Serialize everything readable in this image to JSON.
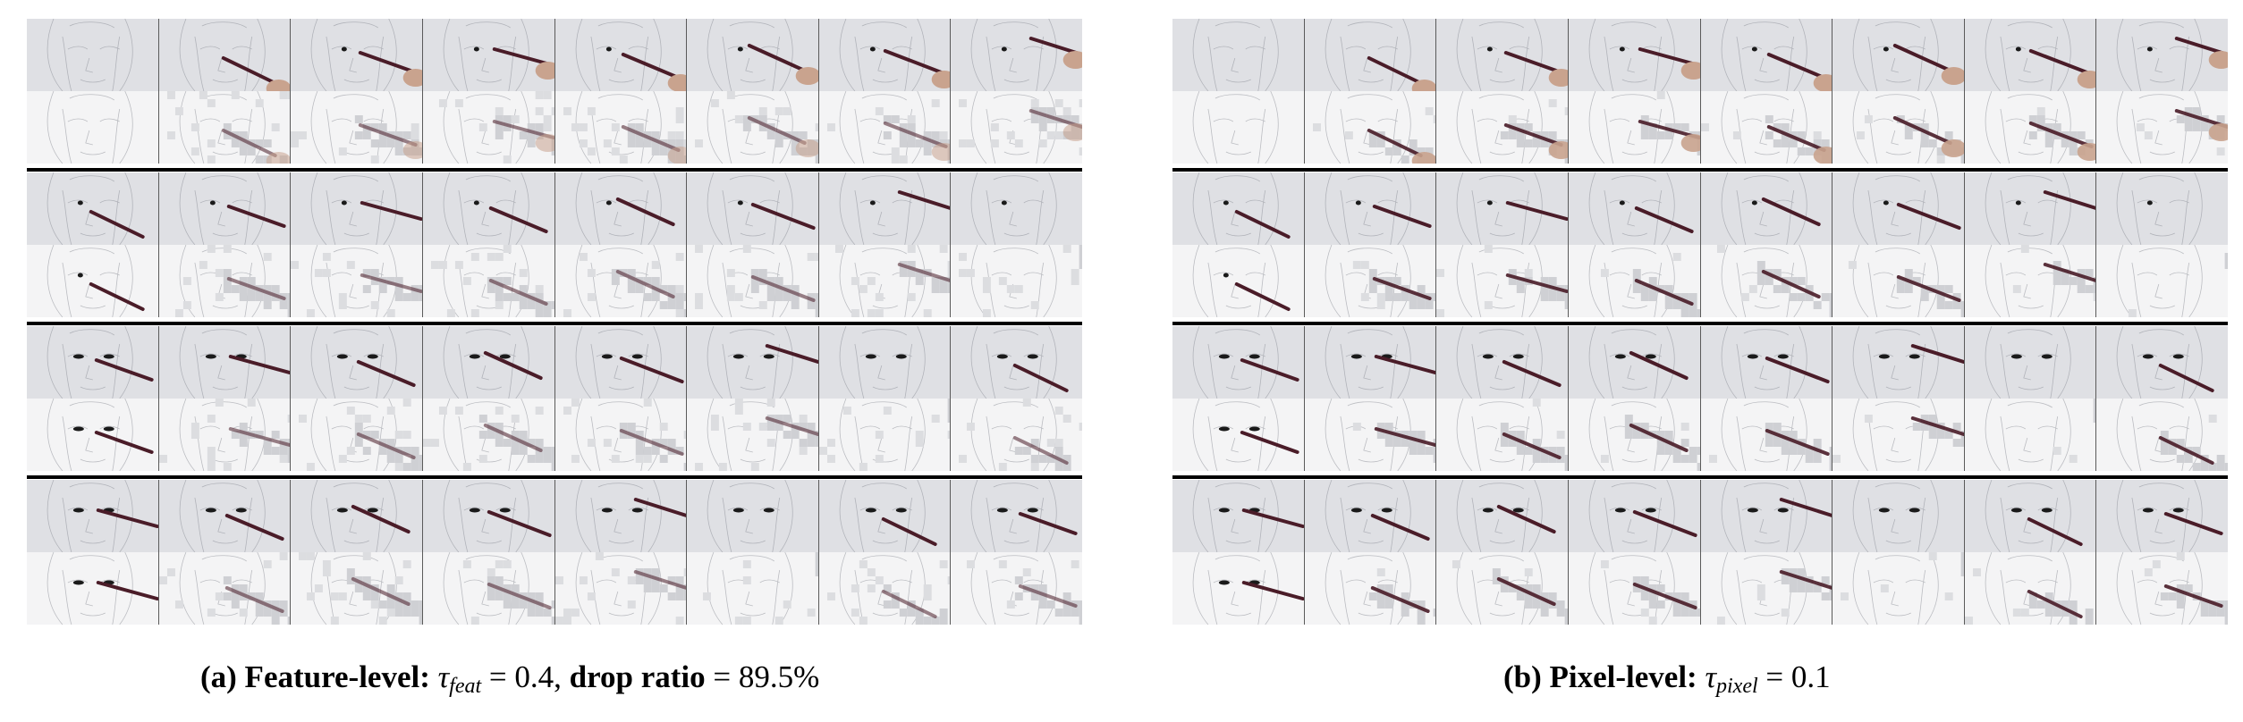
{
  "panels": [
    {
      "id": "a",
      "caption": {
        "label": "(a) Feature-level:",
        "symbol": "τ",
        "subscript": "feat",
        "equals": " = 0.4, ",
        "metric_label": "drop ratio",
        "metric_equals": " = 89.5%"
      },
      "row_pairs": 4,
      "frames_per_row": 8,
      "row_types": [
        "frame",
        "mask-overlay"
      ]
    },
    {
      "id": "b",
      "caption": {
        "label": "(b) Pixel-level:",
        "symbol": "τ",
        "subscript": "pixel",
        "equals": " = 0.1"
      },
      "row_pairs": 4,
      "frames_per_row": 8,
      "row_types": [
        "frame",
        "mask-overlay"
      ]
    }
  ],
  "colors": {
    "frame_background": "#dfe0e4",
    "masked_background": "#f4f4f5",
    "brush": "#4a1c28",
    "hand": "#c9a38e",
    "sketch_line": "#8d9098",
    "separator": "#000000"
  }
}
